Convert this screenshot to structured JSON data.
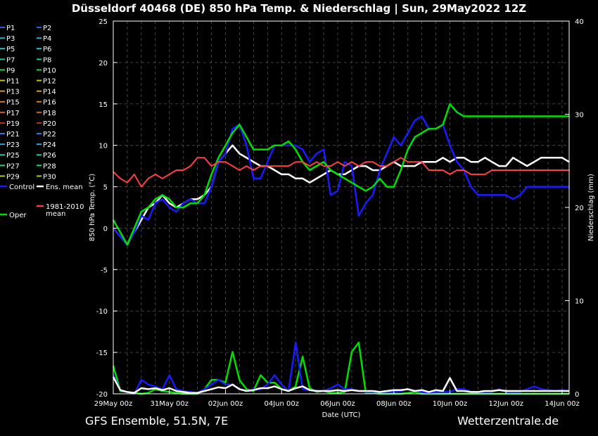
{
  "title": "Düsseldorf 40468 (DE)  850 hPa Temp. & Niederschlag | Sun, 29May2022 12Z",
  "footer": {
    "left": "GFS Ensemble, 51.5N, 7E",
    "right": "Wetterzentrale.de"
  },
  "chart_data": {
    "type": "line",
    "title": "Düsseldorf 40468 (DE)  850 hPa Temp. & Niederschlag | Sun, 29May2022 12Z",
    "xlabel": "Date (UTC)",
    "ylabel": "850 hPa Temp. (°C)",
    "y2label": "Niederschlag (mm)",
    "ylim": [
      -20,
      25
    ],
    "y2lim": [
      0,
      40
    ],
    "yticks": [
      25,
      20,
      15,
      10,
      5,
      0,
      -5,
      -10,
      -15,
      -20
    ],
    "y2ticks": [
      40,
      30,
      20,
      10,
      0
    ],
    "xticks": [
      "29May 00z",
      "31May 00z",
      "02Jun 00z",
      "04Jun 00z",
      "06Jun 00z",
      "08Jun 00z",
      "10Jun 00z",
      "12Jun 00z",
      "14Jun 00z"
    ],
    "grid": true,
    "legend_position": "left",
    "members": [
      "P1",
      "P2",
      "P3",
      "P4",
      "P5",
      "P6",
      "P7",
      "P8",
      "P9",
      "P10",
      "P11",
      "P12",
      "P13",
      "P14",
      "P15",
      "P16",
      "P17",
      "P18",
      "P19",
      "P20",
      "P21",
      "P22",
      "P23",
      "P24",
      "P25",
      "P26",
      "P27",
      "P28",
      "P29",
      "P30"
    ],
    "member_colors": [
      "#2f5fd8",
      "#2f5fd8",
      "#2aa0d0",
      "#2aa0d0",
      "#2ac0c0",
      "#2ac0c0",
      "#22c07a",
      "#22c07a",
      "#2ed02e",
      "#2ed02e",
      "#c0c030",
      "#c0c030",
      "#d0a020",
      "#d0a020",
      "#d08030",
      "#d08030",
      "#d06030",
      "#d06030",
      "#c03020",
      "#c03020",
      "#3070e0",
      "#3070e0",
      "#30a0e0",
      "#30a0e0",
      "#20c0a0",
      "#20c0a0",
      "#30d070",
      "#30d070",
      "#a0d020",
      "#a0d020"
    ],
    "legend_extra": [
      "Control",
      "Ens. mean",
      "Oper",
      "1981-2010 mean"
    ],
    "extra_colors": {
      "Control": "#1a1aff",
      "Ens. mean": "#ffffff",
      "Oper": "#00e000",
      "1981-2010 mean": "#ff4040"
    },
    "x": [
      0,
      0.5,
      1,
      1.5,
      2,
      2.5,
      3,
      3.5,
      4,
      4.5,
      5,
      5.5,
      6,
      6.5,
      7,
      7.5,
      8,
      8.5,
      9,
      9.5,
      10,
      10.5,
      11,
      11.5,
      12,
      12.5,
      13,
      13.5,
      14,
      14.5,
      15,
      15.5,
      16,
      16.5,
      17,
      17.5,
      18,
      18.5,
      19,
      19.5,
      20,
      20.5,
      21,
      21.5,
      22,
      22.5,
      23,
      23.5,
      24,
      24.5,
      25,
      25.5,
      26,
      26.5,
      27,
      27.5,
      28,
      28.5,
      29,
      29.5,
      30,
      30.5,
      31,
      31.5,
      32,
      32.5
    ],
    "series": [
      {
        "name": "Ens. mean",
        "values": [
          0,
          -1,
          -2,
          -0.5,
          1,
          2.5,
          3,
          4,
          3,
          2.5,
          3,
          3.5,
          3.5,
          4,
          5,
          8,
          9,
          10,
          9,
          8.5,
          8,
          7.5,
          7.5,
          7,
          6.5,
          6.5,
          6,
          6,
          5.5,
          6,
          6.5,
          7,
          6.5,
          6.5,
          7,
          7.5,
          7.5,
          7,
          7,
          7.5,
          8,
          7.5,
          7.5,
          7.5,
          8,
          8,
          8,
          8.5,
          8,
          8.5,
          8.5,
          8,
          8,
          8.5,
          8,
          7.5,
          7.5,
          8.5,
          8,
          7.5,
          8,
          8.5,
          8.5,
          8.5,
          8.5,
          8
        ]
      },
      {
        "name": "Control",
        "values": [
          0,
          -1,
          -2,
          -0.5,
          1.5,
          1,
          3,
          3.5,
          2.5,
          2,
          3,
          3.5,
          3,
          3,
          5,
          8,
          9,
          12,
          12.5,
          10,
          6,
          6,
          8,
          10,
          10,
          10,
          10,
          9.5,
          8,
          9,
          9.5,
          4,
          4.5,
          8,
          7.5,
          1.5,
          3,
          4,
          7,
          9,
          11,
          10,
          11.5,
          13,
          13.5,
          12,
          12,
          12.5,
          10,
          8,
          7,
          5,
          4,
          4,
          4,
          4,
          4,
          3.5,
          4,
          5,
          5,
          5,
          5,
          5,
          5,
          5
        ]
      },
      {
        "name": "Oper",
        "values": [
          1,
          -0.5,
          -2,
          0,
          2,
          2.5,
          3.5,
          4,
          3.5,
          2.5,
          2.5,
          3,
          3,
          4,
          6.5,
          8.5,
          10,
          11.5,
          12.5,
          11,
          9.5,
          9.5,
          9.5,
          10,
          10,
          10.5,
          9.5,
          8,
          7,
          7.5,
          8,
          7,
          6.5,
          6,
          5.5,
          5,
          4.5,
          5,
          6,
          5,
          5,
          7,
          9.5,
          11,
          11.5,
          12,
          12,
          12.5,
          15,
          14,
          13.5,
          13.5,
          13.5,
          13.5,
          13.5,
          13.5,
          13.5,
          13.5,
          13.5,
          13.5,
          13.5,
          13.5,
          13.5,
          13.5,
          13.5,
          13.5
        ]
      },
      {
        "name": "1981-2010 mean",
        "values": [
          6.8,
          6,
          5.5,
          6.5,
          5,
          6,
          6.5,
          6,
          6.5,
          7,
          7,
          7.5,
          8.5,
          8.5,
          7.5,
          8,
          8,
          7.5,
          7,
          7.5,
          7,
          7.5,
          7.5,
          7.5,
          7.5,
          7.5,
          8,
          8,
          7.5,
          8,
          7.5,
          7.5,
          8,
          7.5,
          8,
          7.5,
          8,
          8,
          7.5,
          7.5,
          8,
          8.5,
          8,
          8,
          8,
          7,
          7,
          7,
          6.5,
          7,
          7,
          6.5,
          6.5,
          6.5,
          7,
          7,
          7,
          7,
          7,
          7,
          7,
          7,
          7,
          7,
          7,
          7
        ]
      }
    ],
    "precip_series": [
      {
        "name": "Oper",
        "values": [
          3,
          0.3,
          0.2,
          0.1,
          0,
          0.1,
          0.5,
          0.3,
          0.2,
          0.1,
          0,
          0,
          0,
          0.5,
          1.5,
          1.5,
          1.2,
          4.5,
          1.5,
          0.5,
          0.3,
          2,
          1.2,
          1.2,
          0.5,
          0.3,
          0.8,
          4,
          0.6,
          0.2,
          0.3,
          0.1,
          0.1,
          0.2,
          4.5,
          5.5,
          0.1,
          0.1,
          0,
          0,
          0,
          0,
          0.1,
          0.2,
          0,
          0,
          0,
          0,
          0,
          0,
          0,
          0,
          0,
          0,
          0,
          0,
          0,
          0,
          0,
          0,
          0,
          0,
          0,
          0,
          0,
          0
        ]
      },
      {
        "name": "Control",
        "values": [
          2,
          0.4,
          0.2,
          0,
          1.5,
          1,
          0.8,
          0.5,
          2,
          0.5,
          0.3,
          0.2,
          0.1,
          0.5,
          1,
          1.5,
          1,
          1,
          0.5,
          0.3,
          0.5,
          0.5,
          1,
          2,
          1,
          0.3,
          5.5,
          0.5,
          0.4,
          0.3,
          0.3,
          0.6,
          1,
          0.5,
          0.5,
          0.3,
          0.2,
          0.2,
          0.2,
          0.2,
          0.2,
          0.3,
          0.5,
          0.3,
          0.2,
          0.1,
          0.2,
          0.2,
          0.2,
          0.5,
          0.5,
          0.2,
          0.2,
          0.2,
          0.2,
          0.5,
          0.2,
          0.2,
          0.2,
          0.5,
          0.8,
          0.5,
          0.4,
          0.3,
          0.4,
          0.3
        ]
      },
      {
        "name": "Ens. mean",
        "values": [
          1.8,
          0.4,
          0.2,
          0.1,
          0.6,
          0.5,
          0.6,
          0.4,
          0.6,
          0.3,
          0.2,
          0.1,
          0.1,
          0.3,
          0.5,
          0.7,
          0.6,
          1,
          0.5,
          0.3,
          0.4,
          0.6,
          0.6,
          0.8,
          0.5,
          0.3,
          0.6,
          0.8,
          0.4,
          0.3,
          0.3,
          0.3,
          0.4,
          0.3,
          0.4,
          0.3,
          0.3,
          0.3,
          0.2,
          0.3,
          0.4,
          0.4,
          0.5,
          0.3,
          0.4,
          0.2,
          0.4,
          0.3,
          1.7,
          0.3,
          0.3,
          0.2,
          0.2,
          0.3,
          0.3,
          0.4,
          0.3,
          0.3,
          0.3,
          0.3,
          0.3,
          0.3,
          0.3,
          0.3,
          0.3,
          0.3
        ]
      }
    ]
  }
}
